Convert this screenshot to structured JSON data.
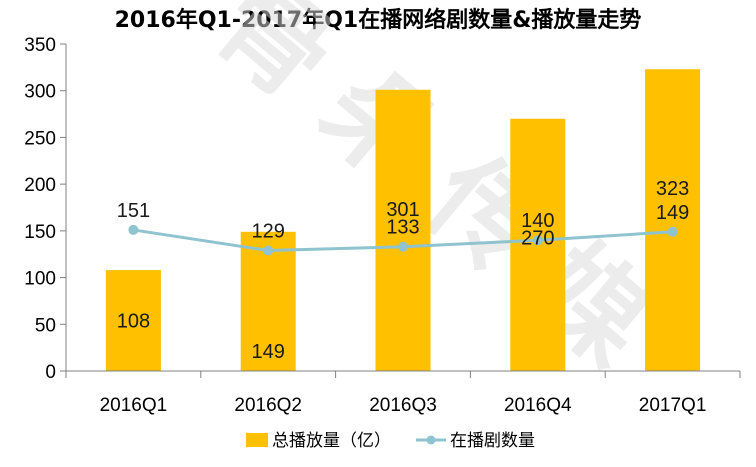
{
  "chart_data": {
    "type": "bar+line",
    "title": "2016年Q1-2017年Q1在播网络剧数量&播放量走势",
    "categories": [
      "2016Q1",
      "2016Q2",
      "2016Q3",
      "2016Q4",
      "2017Q1"
    ],
    "series": [
      {
        "name": "总播放量（亿）",
        "type": "bar",
        "color": "#FFC000",
        "values": [
          108,
          149,
          301,
          270,
          323
        ]
      },
      {
        "name": "在播剧数量",
        "type": "line",
        "color": "#8EC3CF",
        "values": [
          151,
          129,
          133,
          140,
          149
        ]
      }
    ],
    "ylim": [
      0,
      350
    ],
    "yticks": [
      0,
      50,
      100,
      150,
      200,
      250,
      300,
      350
    ],
    "legend_position": "bottom",
    "watermark": "骨朵传媒"
  }
}
